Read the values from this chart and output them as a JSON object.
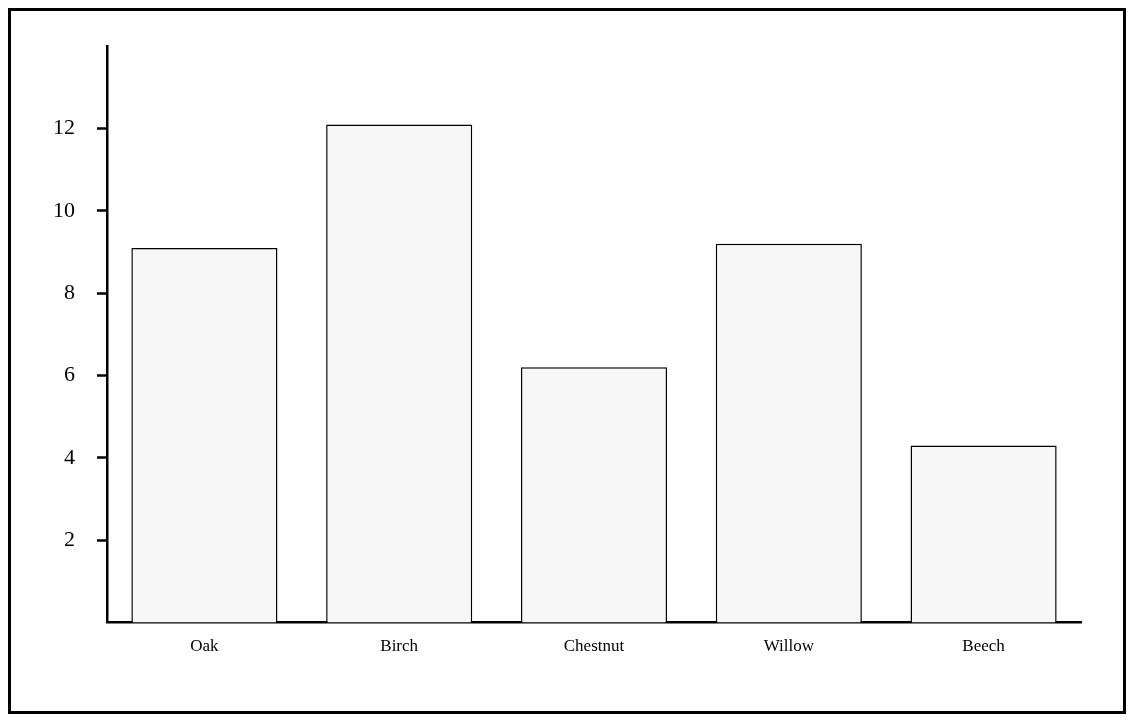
{
  "chart_data": {
    "type": "bar",
    "categories": [
      "Oak",
      "Birch",
      "Chestnut",
      "Willow",
      "Beech"
    ],
    "values": [
      9.1,
      12.1,
      6.2,
      9.2,
      4.3
    ],
    "color": "#f7f7f7",
    "ylim": [
      0,
      14
    ],
    "yticks": [
      2,
      4,
      6,
      8,
      10,
      12
    ],
    "grid": false,
    "legend": false
  }
}
